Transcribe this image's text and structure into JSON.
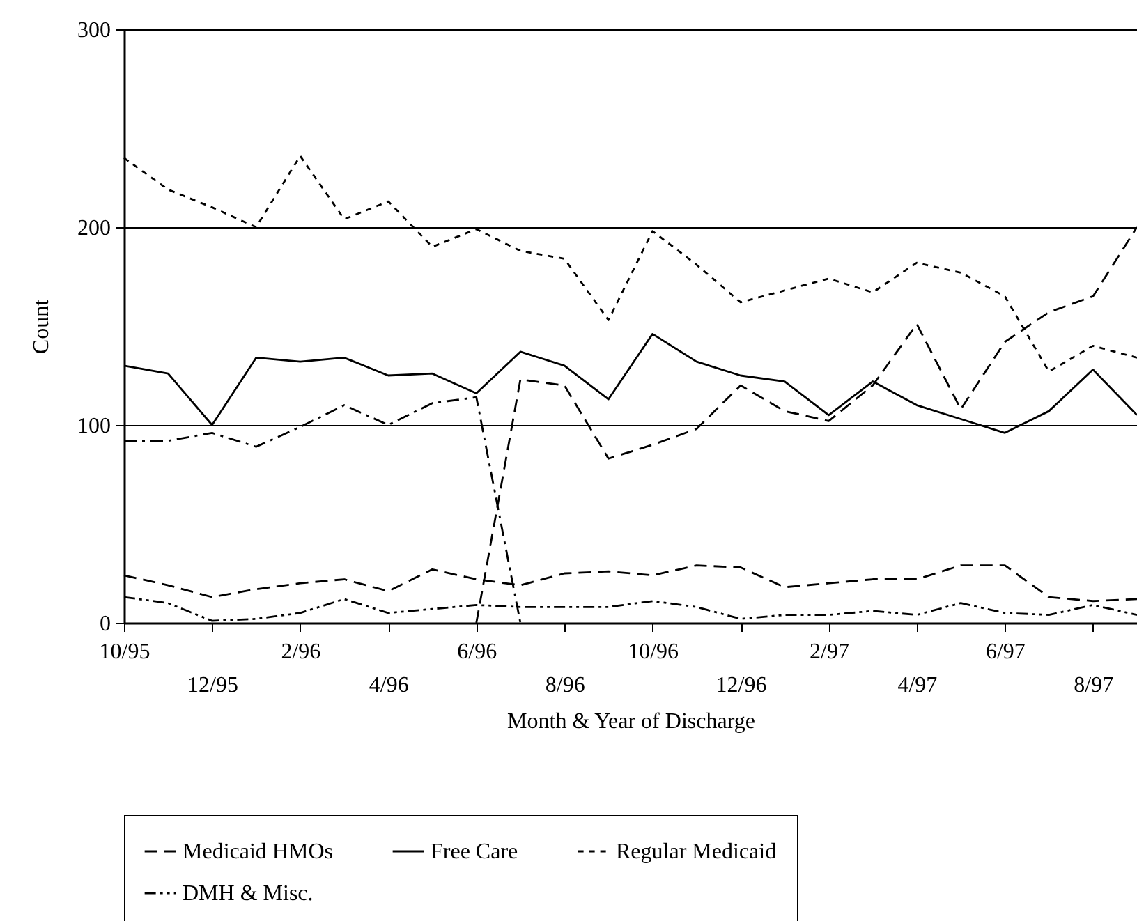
{
  "chart_data": {
    "type": "line",
    "xlabel": "Month & Year of Discharge",
    "ylabel": "Count",
    "categories": [
      "10/95",
      null,
      "12/95",
      null,
      "2/96",
      null,
      "4/96",
      null,
      "6/96",
      null,
      "8/96",
      null,
      "10/96",
      null,
      "12/96",
      null,
      "2/97",
      null,
      "4/97",
      null,
      "6/97",
      null,
      "8/97",
      null
    ],
    "ylim": [
      0,
      300
    ],
    "yticks": [
      0,
      100,
      200,
      300
    ],
    "grid": "y",
    "legend": "bottom",
    "marker": "none",
    "series": [
      {
        "color": "#000000",
        "line_style": "dashed",
        "values": [
          null,
          null,
          null,
          null,
          null,
          null,
          null,
          null,
          0,
          123,
          120,
          83,
          90,
          98,
          120,
          107,
          102,
          120,
          151,
          108,
          142,
          157,
          165,
          200
        ]
      },
      {
        "name": "Medicaid HMOs",
        "color": "#000000",
        "line_style": "dashed",
        "values": [
          24,
          19,
          13,
          17,
          20,
          22,
          16,
          27,
          22,
          19,
          25,
          26,
          24,
          29,
          28,
          18,
          20,
          22,
          22,
          29,
          29,
          13,
          11,
          12
        ]
      },
      {
        "name": "Free Care",
        "color": "#000000",
        "line_style": "solid",
        "values": [
          130,
          126,
          100,
          134,
          132,
          134,
          125,
          126,
          116,
          137,
          130,
          113,
          146,
          132,
          125,
          122,
          105,
          122,
          110,
          103,
          96,
          107,
          128,
          105
        ]
      },
      {
        "color": "#000000",
        "line_style": "dashdot",
        "values": [
          92,
          92,
          96,
          89,
          99,
          110,
          100,
          111,
          114,
          0,
          null,
          null,
          null,
          null,
          null,
          null,
          null,
          null,
          null,
          null,
          null,
          null,
          null,
          null
        ]
      },
      {
        "name": "Regular Medicaid",
        "color": "#000000",
        "line_style": "dotted",
        "values": [
          235,
          219,
          210,
          200,
          236,
          204,
          213,
          190,
          199,
          188,
          184,
          153,
          198,
          181,
          162,
          168,
          174,
          167,
          182,
          177,
          165,
          127,
          140,
          134
        ]
      },
      {
        "name": "DMH & Misc.",
        "color": "#000000",
        "line_style": "dashdotdot",
        "values": [
          13,
          10,
          1,
          2,
          5,
          12,
          5,
          7,
          9,
          8,
          8,
          8,
          11,
          8,
          2,
          4,
          4,
          6,
          4,
          10,
          5,
          4,
          9,
          4
        ]
      }
    ]
  }
}
